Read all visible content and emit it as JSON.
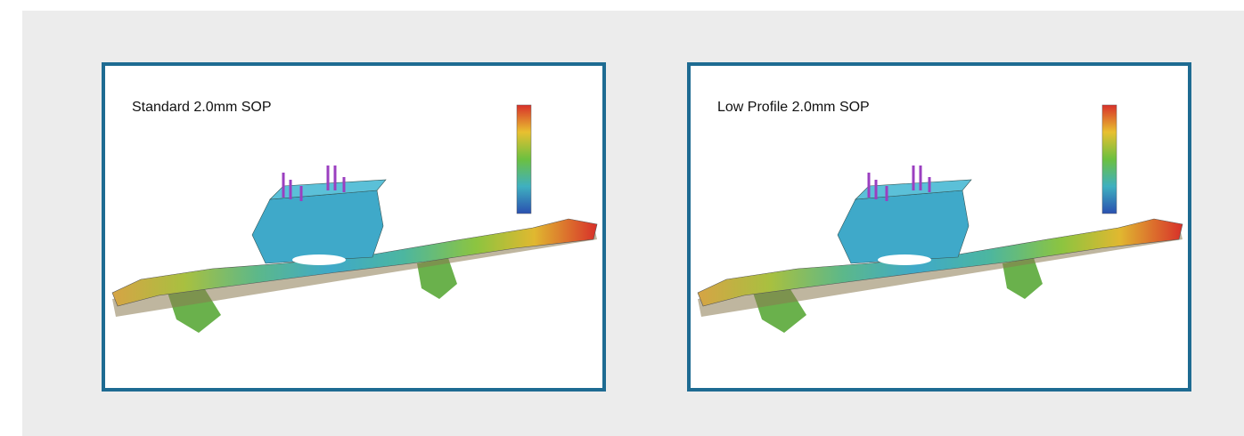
{
  "panels": [
    {
      "title": "Standard 2.0mm SOP"
    },
    {
      "title": "Low Profile 2.0mm SOP"
    }
  ]
}
